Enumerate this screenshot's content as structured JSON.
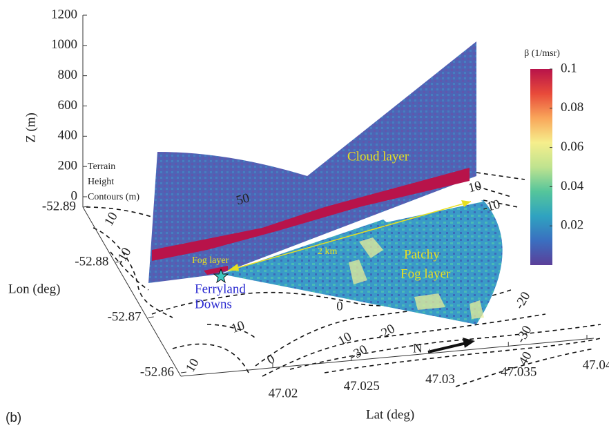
{
  "chart_data": {
    "type": "lidar-3d",
    "zlabel": "Z (m)",
    "ylabel": "Lon (deg)",
    "xlabel": "Lat (deg)",
    "panel_label": "(b)",
    "colorbar_label": "β (1/msr)",
    "terrain_label": [
      "Terrain",
      "Height",
      "Contours (m)"
    ],
    "annotations": {
      "cloud_layer": "Cloud layer",
      "patchy_fog": [
        "Patchy",
        "Fog layer"
      ],
      "fog_layer": "Fog layer",
      "range": "2 km",
      "site": [
        "Ferryland",
        "Downs"
      ],
      "north": "N"
    },
    "zlim": [
      0,
      1200
    ],
    "zticks": [
      0,
      200,
      400,
      600,
      800,
      1000,
      1200
    ],
    "ylim": [
      -52.89,
      -52.86
    ],
    "yticks": [
      -52.89,
      -52.88,
      -52.87,
      -52.86
    ],
    "xlim": [
      47.02,
      47.04
    ],
    "xticks": [
      47.02,
      47.025,
      47.03,
      47.035,
      47.04
    ],
    "clim": [
      0,
      0.1
    ],
    "cticks": [
      0.02,
      0.04,
      0.06,
      0.08,
      0.1
    ],
    "colormap": [
      "#5b3f99",
      "#3a6fc0",
      "#2fa3c0",
      "#55c59b",
      "#bfe38f",
      "#f6ee8c",
      "#f9a65a",
      "#e84a3a",
      "#b8134a"
    ],
    "contour_labels": [
      10,
      -10,
      50,
      10,
      -10,
      10,
      0,
      10,
      -30,
      -20,
      0,
      10,
      -20,
      -30,
      40
    ]
  }
}
